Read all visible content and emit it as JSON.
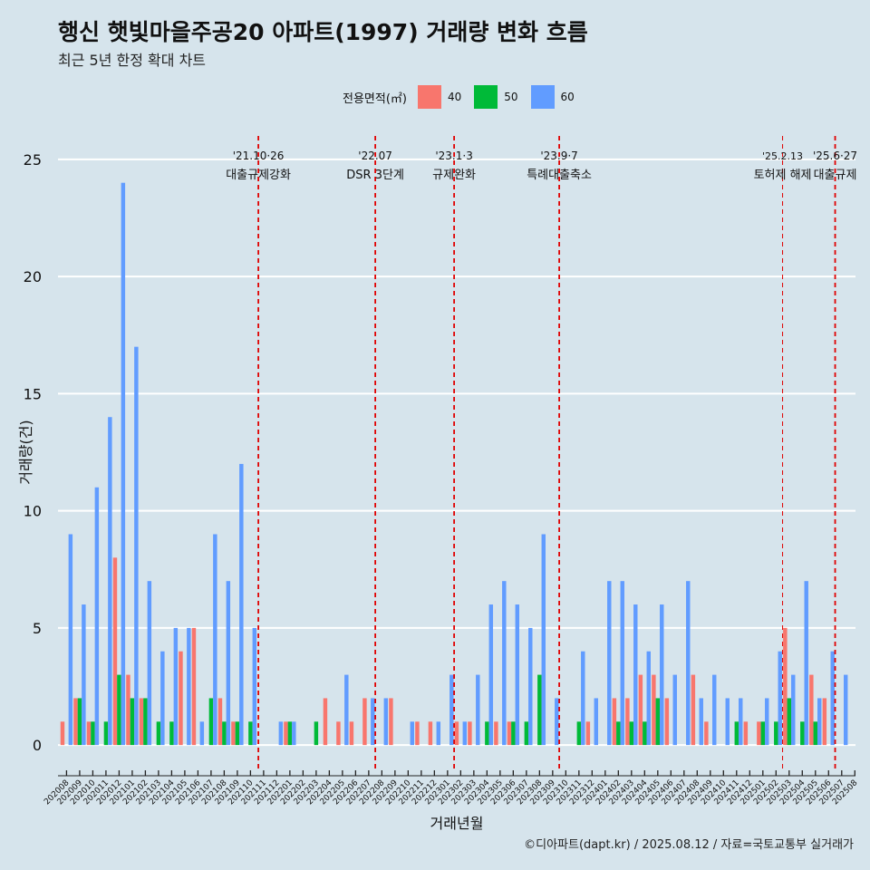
{
  "header": {
    "title": "행신 햇빛마을주공20 아파트(1997) 거래량 변화 흐름",
    "subtitle": "최근 5년 한정 확대 차트"
  },
  "footer": {
    "caption": "©디아파트(dapt.kr) / 2025.08.12 / 자료=국토교통부 실거래가"
  },
  "colors": {
    "background": "#d6e4ec",
    "grid": "#ffffff",
    "marker": "#e00000"
  },
  "chart_data": {
    "type": "bar",
    "xlabel": "거래년월",
    "ylabel": "거래량(건)",
    "ylim": [
      -1,
      26
    ],
    "yticks": [
      0,
      5,
      10,
      15,
      20,
      25
    ],
    "grid": true,
    "legend_title": "전용면적(㎡)",
    "legend_position": "top",
    "categories": [
      "202008",
      "202009",
      "202010",
      "202011",
      "202012",
      "202101",
      "202102",
      "202103",
      "202104",
      "202105",
      "202106",
      "202107",
      "202108",
      "202109",
      "202110",
      "202111",
      "202112",
      "202201",
      "202202",
      "202203",
      "202204",
      "202205",
      "202206",
      "202207",
      "202208",
      "202209",
      "202210",
      "202211",
      "202212",
      "202301",
      "202302",
      "202303",
      "202304",
      "202305",
      "202306",
      "202307",
      "202308",
      "202309",
      "202310",
      "202311",
      "202312",
      "202401",
      "202402",
      "202403",
      "202404",
      "202405",
      "202406",
      "202407",
      "202408",
      "202409",
      "202410",
      "202411",
      "202412",
      "202501",
      "202502",
      "202503",
      "202504",
      "202505",
      "202506",
      "202507",
      "202508"
    ],
    "series": [
      {
        "name": "40",
        "color": "#f8766d",
        "values": [
          1,
          2,
          1,
          0,
          8,
          3,
          2,
          0,
          0,
          4,
          5,
          0,
          2,
          1,
          0,
          0,
          0,
          1,
          0,
          0,
          2,
          1,
          1,
          2,
          0,
          2,
          0,
          1,
          1,
          0,
          1,
          1,
          0,
          1,
          1,
          0,
          0,
          0,
          0,
          0,
          1,
          0,
          2,
          2,
          3,
          3,
          2,
          0,
          3,
          1,
          0,
          0,
          1,
          1,
          0,
          5,
          0,
          3,
          2,
          0,
          0
        ]
      },
      {
        "name": "50",
        "color": "#00ba38",
        "values": [
          0,
          2,
          1,
          1,
          3,
          2,
          2,
          1,
          1,
          0,
          0,
          2,
          1,
          1,
          1,
          0,
          0,
          1,
          0,
          1,
          0,
          0,
          0,
          0,
          0,
          0,
          0,
          0,
          0,
          0,
          0,
          0,
          1,
          0,
          1,
          1,
          3,
          0,
          0,
          1,
          0,
          0,
          1,
          1,
          1,
          2,
          0,
          0,
          0,
          0,
          0,
          1,
          0,
          1,
          1,
          2,
          1,
          1,
          0,
          0,
          0
        ]
      },
      {
        "name": "60",
        "color": "#619cff",
        "values": [
          9,
          6,
          11,
          14,
          24,
          17,
          7,
          4,
          5,
          5,
          1,
          9,
          7,
          12,
          5,
          0,
          1,
          1,
          0,
          0,
          0,
          3,
          0,
          2,
          2,
          0,
          1,
          0,
          1,
          3,
          1,
          3,
          6,
          7,
          6,
          5,
          9,
          2,
          0,
          4,
          2,
          7,
          7,
          6,
          4,
          6,
          3,
          7,
          2,
          3,
          2,
          2,
          0,
          2,
          4,
          3,
          7,
          2,
          4,
          3,
          0
        ]
      }
    ],
    "events": [
      {
        "index": 14.6,
        "date": "'21.10·26",
        "label": "대출규제강화"
      },
      {
        "index": 23.5,
        "date": "'22.07",
        "label": "DSR 3단계"
      },
      {
        "index": 29.5,
        "date": "'23.1·3",
        "label": "규제완화"
      },
      {
        "index": 37.5,
        "date": "'23.9·7",
        "label": "특례대출축소"
      },
      {
        "index": 54.5,
        "date": "'25.2.13",
        "label": "토허제 해제"
      },
      {
        "index": 58.5,
        "date": "'25.6·27",
        "label": "대출규제"
      }
    ]
  }
}
